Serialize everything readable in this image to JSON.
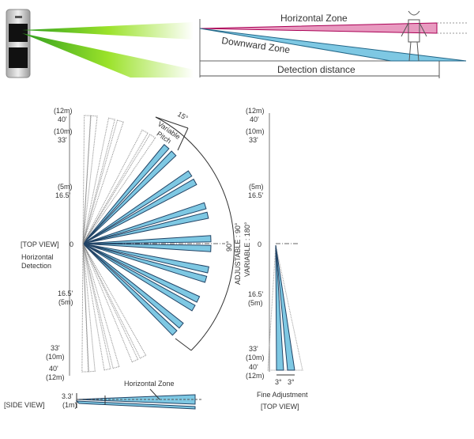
{
  "top_diagram": {
    "horizontal_zone": "Horizontal Zone",
    "downward_zone": "Downward Zone",
    "detection_distance": "Detection distance"
  },
  "top_view": {
    "title": "[TOP VIEW]",
    "subtitle_1": "Horizontal",
    "subtitle_2": "Detection",
    "ticks_up": [
      {
        "m": "(12m)",
        "ft": "40'"
      },
      {
        "m": "(10m)",
        "ft": "33'"
      },
      {
        "m": "(5m)",
        "ft": "16.5'"
      }
    ],
    "zero": "0",
    "ticks_down": [
      {
        "ft": "16.5'",
        "m": "(5m)"
      },
      {
        "ft": "33'",
        "m": "(10m)"
      },
      {
        "ft": "40'",
        "m": "(12m)"
      }
    ],
    "pitch_angle": "15°",
    "pitch_label_1": "Variable",
    "pitch_label_2": "Pitch",
    "arc_angle": "90°",
    "adjustable": "ADJUSTABLE : 90°",
    "variable": "VARIABLE : 180°"
  },
  "fine_view": {
    "ticks_up": [
      {
        "m": "(12m)",
        "ft": "40'"
      },
      {
        "m": "(10m)",
        "ft": "33'"
      },
      {
        "m": "(5m)",
        "ft": "16.5'"
      }
    ],
    "zero": "0",
    "ticks_down": [
      {
        "ft": "16.5'",
        "m": "(5m)"
      },
      {
        "ft": "33'",
        "m": "(10m)"
      },
      {
        "ft": "40'",
        "m": "(12m)"
      }
    ],
    "left_angle": "3°",
    "right_angle": "3°",
    "label": "Fine Adjustment",
    "title": "[TOP VIEW]"
  },
  "side_view": {
    "title": "[SIDE VIEW]",
    "height_ft": "3.3'",
    "height_m": "(1m)",
    "zone_label": "Horizontal Zone"
  },
  "colors": {
    "beam_blue": "#7ec8e3",
    "pink": "#e89ac0",
    "green": "#7ed321"
  }
}
